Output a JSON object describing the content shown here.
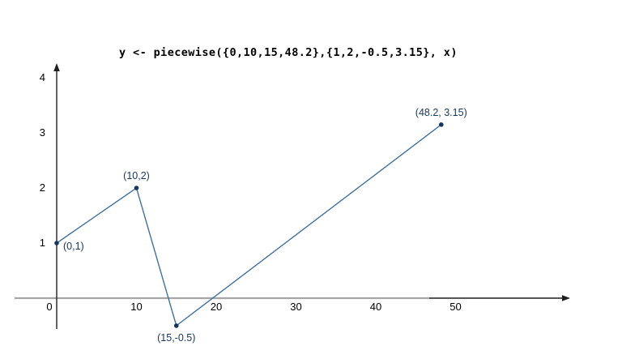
{
  "chart_data": {
    "type": "line",
    "title": "y <- piecewise({0,10,15,48.2},{1,2,-0.5,3.15}, x)",
    "points": [
      {
        "x": 0,
        "y": 1,
        "label": "(0,1)",
        "label_pos": "right"
      },
      {
        "x": 10,
        "y": 2,
        "label": "(10,2)",
        "label_pos": "above"
      },
      {
        "x": 15,
        "y": -0.5,
        "label": "(15,-0.5)",
        "label_pos": "below"
      },
      {
        "x": 48.2,
        "y": 3.15,
        "label": "(48.2, 3.15)",
        "label_pos": "above"
      }
    ],
    "x_ticks": [
      0,
      10,
      20,
      30,
      40,
      50
    ],
    "y_ticks": [
      1,
      2,
      3,
      4
    ],
    "xlim": [
      0,
      57
    ],
    "ylim": [
      -0.9,
      4.25
    ],
    "grid": false,
    "legend": "none",
    "colors": {
      "line": "#41719c",
      "point": "#17365d",
      "point_label": "#17365d",
      "axis": "#1f1f1f",
      "axis_overlay_gray": "#a6a6a6",
      "tick_text": "#000000",
      "background": "#ffffff"
    }
  }
}
